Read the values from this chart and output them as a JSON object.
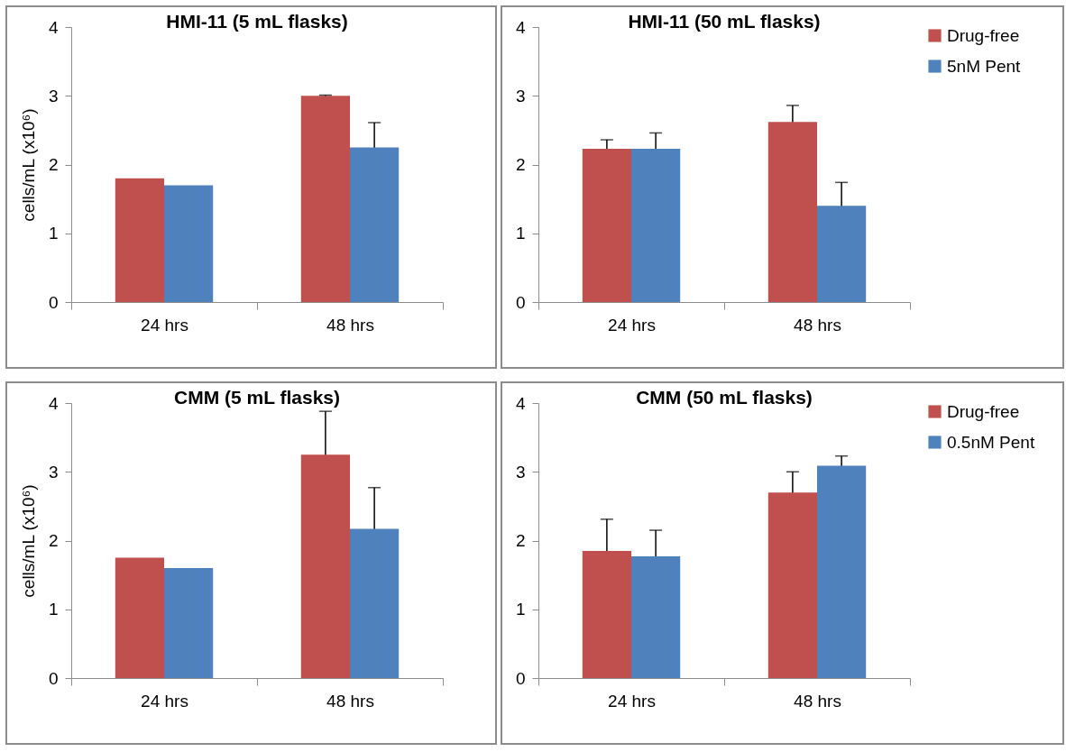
{
  "chart_data": [
    {
      "type": "bar",
      "title": "HMI-11 (5 mL flasks)",
      "ylabel": "cells/mL (x10⁶)",
      "categories": [
        "24 hrs",
        "48 hrs"
      ],
      "ylim": [
        0,
        4
      ],
      "yticks": [
        0,
        1,
        2,
        3,
        4
      ],
      "series": [
        {
          "color": "#c0504d",
          "values": [
            1.8,
            3.0
          ],
          "errors": [
            null,
            0.01
          ]
        },
        {
          "color": "#4f81bd",
          "values": [
            1.7,
            2.25
          ],
          "errors": [
            null,
            0.36
          ]
        }
      ]
    },
    {
      "type": "bar",
      "title": "HMI-11 (50 mL flasks)",
      "categories": [
        "24 hrs",
        "48 hrs"
      ],
      "ylim": [
        0,
        4
      ],
      "yticks": [
        0,
        1,
        2,
        3,
        4
      ],
      "legend": "right",
      "series": [
        {
          "name": "Drug-free",
          "color": "#c0504d",
          "values": [
            2.23,
            2.62
          ],
          "errors": [
            0.13,
            0.24
          ]
        },
        {
          "name": "5nM Pent",
          "color": "#4f81bd",
          "values": [
            2.23,
            1.4
          ],
          "errors": [
            0.23,
            0.34
          ]
        }
      ]
    },
    {
      "type": "bar",
      "title": "CMM (5 mL flasks)",
      "ylabel": "cells/mL (x10⁶)",
      "categories": [
        "24 hrs",
        "48 hrs"
      ],
      "ylim": [
        0,
        4
      ],
      "yticks": [
        0,
        1,
        2,
        3,
        4
      ],
      "series": [
        {
          "color": "#c0504d",
          "values": [
            1.75,
            3.25
          ],
          "errors": [
            null,
            0.63
          ]
        },
        {
          "color": "#4f81bd",
          "values": [
            1.6,
            2.17
          ],
          "errors": [
            null,
            0.6
          ]
        }
      ]
    },
    {
      "type": "bar",
      "title": "CMM (50 mL flasks)",
      "categories": [
        "24 hrs",
        "48 hrs"
      ],
      "ylim": [
        0,
        4
      ],
      "yticks": [
        0,
        1,
        2,
        3,
        4
      ],
      "legend": "right",
      "series": [
        {
          "name": "Drug-free",
          "color": "#c0504d",
          "values": [
            1.85,
            2.7
          ],
          "errors": [
            0.46,
            0.3
          ]
        },
        {
          "name": "0.5nM Pent",
          "color": "#4f81bd",
          "values": [
            1.77,
            3.09
          ],
          "errors": [
            0.38,
            0.14
          ]
        }
      ]
    }
  ]
}
